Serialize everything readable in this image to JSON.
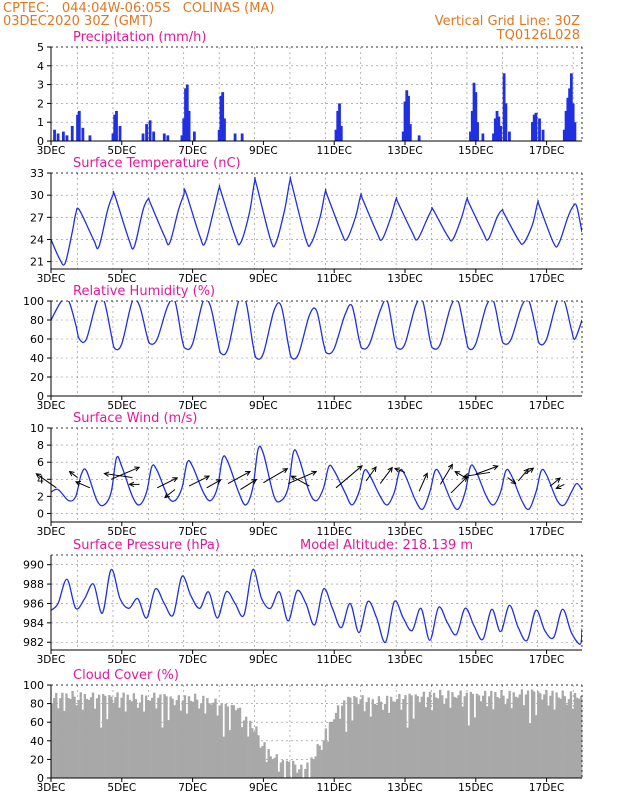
{
  "header": {
    "line1_left": "CPTEC:   044:04W-06:05S   COLINAS (MA)",
    "line2_left": "03DEC2020 30Z (GMT)",
    "line1_right": "Vertical Grid Line: 30Z",
    "line2_right": "TQ0126L028"
  },
  "colors": {
    "header": "#e07820",
    "title": "#e0189c",
    "series": "#2030e0",
    "cloud": "#a8a8a8",
    "axis": "#000000",
    "grid": "#888888"
  },
  "x_axis": {
    "days": 15,
    "tick_labels": [
      "3DEC",
      "5DEC",
      "7DEC",
      "9DEC",
      "11DEC",
      "13DEC",
      "15DEC",
      "17DEC"
    ],
    "tick_days": [
      0,
      2,
      4,
      6,
      8,
      10,
      12,
      14
    ]
  },
  "chart_data": [
    {
      "id": "precip",
      "type": "bar",
      "title": "Precipitation (mm/h)",
      "ylim": [
        0,
        5
      ],
      "yticks": [
        "0",
        "1",
        "2",
        "3",
        "4",
        "5"
      ],
      "yticks_values": [
        0,
        1,
        2,
        3,
        4,
        5
      ],
      "events": [
        [
          0.1,
          0.6
        ],
        [
          0.2,
          0.4
        ],
        [
          0.35,
          0.5
        ],
        [
          0.45,
          0.3
        ],
        [
          0.6,
          0.8
        ],
        [
          0.75,
          1.4
        ],
        [
          0.8,
          1.6
        ],
        [
          0.9,
          0.7
        ],
        [
          1.1,
          0.3
        ],
        [
          1.75,
          0.4
        ],
        [
          1.8,
          1.4
        ],
        [
          1.85,
          1.6
        ],
        [
          1.95,
          0.8
        ],
        [
          2.6,
          0.4
        ],
        [
          2.7,
          0.9
        ],
        [
          2.8,
          1.1
        ],
        [
          2.9,
          0.5
        ],
        [
          3.2,
          0.4
        ],
        [
          3.3,
          0.3
        ],
        [
          3.7,
          0.3
        ],
        [
          3.75,
          1.2
        ],
        [
          3.8,
          2.8
        ],
        [
          3.85,
          3.0
        ],
        [
          3.9,
          1.6
        ],
        [
          4.05,
          0.5
        ],
        [
          4.75,
          0.6
        ],
        [
          4.8,
          2.4
        ],
        [
          4.85,
          2.6
        ],
        [
          4.9,
          1.2
        ],
        [
          5.2,
          0.4
        ],
        [
          5.4,
          0.4
        ],
        [
          8.05,
          0.6
        ],
        [
          8.1,
          1.6
        ],
        [
          8.15,
          2.0
        ],
        [
          8.2,
          0.8
        ],
        [
          9.95,
          0.5
        ],
        [
          10.0,
          2.1
        ],
        [
          10.05,
          2.7
        ],
        [
          10.1,
          2.4
        ],
        [
          10.15,
          0.9
        ],
        [
          10.4,
          0.3
        ],
        [
          11.85,
          0.5
        ],
        [
          11.9,
          1.6
        ],
        [
          11.95,
          3.1
        ],
        [
          12.0,
          2.6
        ],
        [
          12.05,
          1.0
        ],
        [
          12.2,
          0.4
        ],
        [
          12.5,
          0.4
        ],
        [
          12.55,
          1.2
        ],
        [
          12.6,
          1.6
        ],
        [
          12.65,
          1.3
        ],
        [
          12.7,
          0.8
        ],
        [
          12.8,
          3.6
        ],
        [
          12.85,
          2.0
        ],
        [
          12.95,
          0.5
        ],
        [
          13.6,
          1.0
        ],
        [
          13.65,
          1.4
        ],
        [
          13.7,
          1.5
        ],
        [
          13.8,
          1.2
        ],
        [
          13.9,
          0.6
        ],
        [
          14.5,
          0.6
        ],
        [
          14.55,
          1.6
        ],
        [
          14.6,
          2.3
        ],
        [
          14.65,
          2.8
        ],
        [
          14.7,
          3.6
        ],
        [
          14.75,
          2.0
        ],
        [
          14.8,
          1.0
        ]
      ]
    },
    {
      "id": "temp",
      "type": "line",
      "title": "Surface Temperature (nC)",
      "ylim": [
        20,
        33
      ],
      "yticks": [
        "21",
        "24",
        "27",
        "30",
        "33"
      ],
      "yticks_values": [
        21,
        24,
        27,
        30,
        33
      ],
      "x": [
        0,
        0.25,
        0.4,
        0.6,
        0.7,
        0.8,
        1.2,
        1.35,
        1.6,
        1.75,
        1.8,
        2.2,
        2.35,
        2.6,
        2.75,
        2.8,
        3.2,
        3.35,
        3.6,
        3.75,
        3.8,
        4.2,
        4.35,
        4.6,
        4.75,
        4.8,
        5.2,
        5.35,
        5.6,
        5.75,
        5.8,
        6.2,
        6.35,
        6.6,
        6.75,
        6.8,
        7.2,
        7.35,
        7.6,
        7.75,
        7.8,
        8.2,
        8.35,
        8.6,
        8.75,
        8.8,
        9.2,
        9.35,
        9.6,
        9.75,
        9.8,
        10.2,
        10.35,
        10.6,
        10.75,
        10.8,
        11.2,
        11.35,
        11.6,
        11.75,
        11.8,
        12.2,
        12.35,
        12.6,
        12.75,
        12.8,
        13.2,
        13.35,
        13.6,
        13.75,
        13.8,
        14.2,
        14.35,
        14.6,
        14.75,
        14.85,
        15
      ],
      "y": [
        24,
        21.3,
        20.8,
        25,
        27.5,
        28,
        24,
        23,
        28,
        30,
        30,
        24,
        23,
        28,
        29.5,
        29,
        24.5,
        23.5,
        28,
        30,
        30.5,
        24.5,
        23.5,
        28,
        31,
        30.5,
        24.5,
        23.5,
        27.5,
        31.8,
        31.5,
        24,
        23.5,
        28,
        32,
        31.5,
        24,
        23.5,
        27,
        30.5,
        30,
        25,
        24,
        27,
        30,
        29.5,
        25,
        24,
        27,
        29.5,
        29,
        25,
        24,
        26.5,
        28,
        28,
        24.5,
        24,
        27,
        29.5,
        29,
        25,
        24,
        27,
        28,
        27.5,
        24,
        23.5,
        26,
        29,
        28.5,
        23.5,
        23.5,
        27,
        28.5,
        28.5,
        25
      ]
    },
    {
      "id": "rh",
      "type": "line",
      "title": "Relative Humidity (%)",
      "ylim": [
        0,
        100
      ],
      "yticks": [
        "0",
        "20",
        "40",
        "60",
        "80",
        "100"
      ],
      "yticks_values": [
        0,
        20,
        40,
        60,
        80,
        100
      ],
      "x": [
        0,
        0.3,
        0.5,
        0.7,
        0.8,
        1.0,
        1.3,
        1.5,
        1.7,
        1.8,
        2.0,
        2.3,
        2.5,
        2.7,
        2.8,
        3.0,
        3.3,
        3.5,
        3.7,
        3.8,
        4.0,
        4.3,
        4.5,
        4.7,
        4.8,
        5.0,
        5.3,
        5.5,
        5.7,
        5.8,
        6.0,
        6.3,
        6.5,
        6.7,
        6.8,
        7.0,
        7.3,
        7.5,
        7.7,
        7.8,
        8.0,
        8.3,
        8.5,
        8.7,
        8.8,
        9.0,
        9.3,
        9.5,
        9.7,
        9.8,
        10.0,
        10.3,
        10.5,
        10.7,
        10.8,
        11.0,
        11.3,
        11.5,
        11.7,
        11.8,
        12.0,
        12.3,
        12.5,
        12.7,
        12.8,
        13.0,
        13.3,
        13.5,
        13.7,
        13.8,
        14.0,
        14.3,
        14.5,
        14.7,
        14.8,
        15
      ],
      "y": [
        80,
        100,
        100,
        75,
        60,
        60,
        100,
        100,
        65,
        50,
        55,
        100,
        95,
        65,
        55,
        60,
        95,
        100,
        60,
        50,
        55,
        100,
        95,
        60,
        45,
        50,
        100,
        100,
        55,
        40,
        45,
        90,
        95,
        55,
        40,
        45,
        85,
        90,
        55,
        45,
        50,
        85,
        95,
        60,
        50,
        55,
        90,
        100,
        60,
        50,
        55,
        95,
        100,
        60,
        50,
        55,
        95,
        100,
        65,
        50,
        55,
        95,
        100,
        65,
        55,
        60,
        95,
        100,
        70,
        55,
        60,
        100,
        100,
        70,
        60,
        80
      ]
    },
    {
      "id": "wind",
      "type": "line",
      "title": "Surface Wind (m/s)",
      "ylim": [
        -1,
        10
      ],
      "yticks": [
        "0",
        "2",
        "4",
        "6",
        "8",
        "10"
      ],
      "yticks_values": [
        0,
        2,
        4,
        6,
        8,
        10
      ],
      "x": [
        0,
        0.2,
        0.5,
        0.7,
        0.85,
        1.0,
        1.3,
        1.5,
        1.7,
        1.85,
        2.0,
        2.3,
        2.5,
        2.7,
        2.85,
        3.0,
        3.3,
        3.5,
        3.7,
        3.85,
        4.0,
        4.3,
        4.5,
        4.7,
        4.85,
        5.0,
        5.3,
        5.5,
        5.7,
        5.85,
        6.0,
        6.3,
        6.5,
        6.7,
        6.85,
        7.0,
        7.3,
        7.5,
        7.7,
        7.85,
        8.0,
        8.3,
        8.5,
        8.7,
        8.85,
        9.0,
        9.3,
        9.5,
        9.7,
        9.85,
        10.0,
        10.3,
        10.5,
        10.7,
        10.85,
        11.0,
        11.3,
        11.5,
        11.7,
        11.85,
        12.0,
        12.3,
        12.5,
        12.7,
        12.85,
        13.0,
        13.3,
        13.5,
        13.7,
        13.85,
        14.0,
        14.3,
        14.5,
        14.7,
        14.85,
        15
      ],
      "y": [
        2.5,
        2.8,
        1.5,
        2.0,
        4.5,
        5.0,
        1.5,
        1.0,
        2.5,
        6.5,
        5.5,
        2.0,
        1.0,
        2.5,
        5.5,
        5.0,
        2.0,
        1.5,
        3.0,
        6.0,
        5.5,
        2.5,
        1.5,
        3.0,
        6.5,
        6.0,
        2.5,
        1.0,
        3.0,
        7.5,
        7.0,
        2.0,
        1.5,
        3.0,
        7.2,
        6.5,
        2.5,
        1.5,
        3.0,
        5.5,
        5.0,
        2.5,
        1.0,
        2.5,
        5.0,
        4.5,
        2.0,
        1.0,
        2.5,
        5.0,
        4.5,
        1.5,
        0.5,
        2.5,
        5.0,
        4.5,
        1.5,
        0.5,
        2.5,
        5.5,
        5.0,
        2.0,
        1.0,
        2.5,
        5.0,
        4.5,
        1.5,
        0.5,
        2.5,
        5.0,
        4.5,
        1.5,
        1.0,
        2.5,
        3.5,
        2.8
      ],
      "vectors": [
        [
          0.15,
          3.0,
          -20,
          -14
        ],
        [
          0.75,
          4.2,
          -8,
          -6
        ],
        [
          1.1,
          3.0,
          -14,
          -6
        ],
        [
          1.7,
          4.0,
          28,
          -12
        ],
        [
          2.3,
          4.2,
          -28,
          -4
        ],
        [
          2.5,
          3.4,
          -10,
          0
        ],
        [
          3.0,
          3.0,
          20,
          -10
        ],
        [
          3.5,
          2.8,
          -10,
          8
        ],
        [
          3.9,
          3.2,
          20,
          -10
        ],
        [
          4.4,
          3.0,
          14,
          -8
        ],
        [
          5.0,
          3.5,
          22,
          -12
        ],
        [
          5.35,
          2.8,
          16,
          -10
        ],
        [
          6.0,
          3.6,
          24,
          -14
        ],
        [
          6.7,
          3.5,
          28,
          -12
        ],
        [
          7.3,
          3.2,
          -18,
          -10
        ],
        [
          8.05,
          3.0,
          26,
          -22
        ],
        [
          8.9,
          3.8,
          10,
          -14
        ],
        [
          9.3,
          3.5,
          12,
          -16
        ],
        [
          10.0,
          4.8,
          -10,
          -4
        ],
        [
          10.4,
          2.6,
          8,
          -18
        ],
        [
          11.0,
          3.4,
          12,
          -20
        ],
        [
          11.3,
          2.4,
          16,
          -16
        ],
        [
          11.7,
          4.2,
          -10,
          -6
        ],
        [
          12.0,
          4.6,
          22,
          -8
        ],
        [
          12.4,
          4.8,
          -26,
          4
        ],
        [
          12.9,
          4.2,
          8,
          6
        ],
        [
          13.2,
          3.8,
          10,
          -12
        ],
        [
          13.4,
          4.6,
          8,
          -6
        ],
        [
          14.1,
          3.2,
          10,
          -8
        ],
        [
          14.5,
          3.4,
          -8,
          4
        ]
      ]
    },
    {
      "id": "press",
      "type": "line",
      "title": "Surface Pressure (hPa)",
      "title_right": "Model Altitude: 218.139 m",
      "ylim": [
        981.2,
        991
      ],
      "yticks": [
        "982",
        "984",
        "986",
        "988",
        "990"
      ],
      "yticks_values": [
        982,
        984,
        986,
        988,
        990
      ],
      "x": [
        0,
        0.2,
        0.45,
        0.7,
        0.95,
        1.2,
        1.45,
        1.7,
        1.95,
        2.2,
        2.45,
        2.7,
        2.95,
        3.2,
        3.45,
        3.7,
        3.95,
        4.2,
        4.45,
        4.7,
        4.95,
        5.2,
        5.45,
        5.7,
        5.95,
        6.2,
        6.45,
        6.7,
        6.95,
        7.2,
        7.45,
        7.7,
        7.95,
        8.2,
        8.45,
        8.7,
        8.95,
        9.2,
        9.45,
        9.7,
        9.95,
        10.2,
        10.45,
        10.7,
        10.95,
        11.2,
        11.45,
        11.7,
        11.95,
        12.2,
        12.45,
        12.7,
        12.95,
        13.2,
        13.45,
        13.7,
        13.95,
        14.2,
        14.45,
        14.7,
        14.95,
        15
      ],
      "y": [
        985.3,
        986,
        988.5,
        985.5,
        986.5,
        988,
        985,
        989.5,
        986.5,
        985.5,
        986.5,
        984.5,
        987.5,
        986,
        984.8,
        988.8,
        986.8,
        985.5,
        987.2,
        984.5,
        987.2,
        986,
        984.8,
        989.5,
        986.5,
        985.5,
        987.2,
        984.2,
        987.3,
        986,
        983.8,
        987.5,
        985.5,
        983.5,
        986,
        983,
        986.2,
        984.5,
        982,
        986.2,
        984.5,
        983.2,
        985.5,
        982.2,
        985.6,
        984,
        982.8,
        985.5,
        983.7,
        982.3,
        985.4,
        983.1,
        985.8,
        983.5,
        982.2,
        985.3,
        983.2,
        982.5,
        985.4,
        983,
        981.8,
        983.4
      ]
    },
    {
      "id": "cloud",
      "type": "area",
      "title": "Cloud Cover (%)",
      "ylim": [
        0,
        100
      ],
      "yticks": [
        "0",
        "20",
        "40",
        "60",
        "80",
        "100"
      ],
      "yticks_values": [
        0,
        20,
        40,
        60,
        80,
        100
      ],
      "x": [
        0,
        0.5,
        1.0,
        1.5,
        2.0,
        2.5,
        3.0,
        3.5,
        4.0,
        4.5,
        5.0,
        5.2,
        5.4,
        5.6,
        5.8,
        6.0,
        6.2,
        6.4,
        6.6,
        6.8,
        7.0,
        7.2,
        7.4,
        7.6,
        7.8,
        8.0,
        8.2,
        8.4,
        8.6,
        8.8,
        9.0,
        9.5,
        10.0,
        10.5,
        11.0,
        11.5,
        12.0,
        12.5,
        13.0,
        13.5,
        14.0,
        14.5,
        15
      ],
      "y": [
        92,
        95,
        93,
        92,
        94,
        91,
        93,
        90,
        92,
        88,
        80,
        85,
        70,
        65,
        55,
        40,
        30,
        25,
        20,
        22,
        15,
        18,
        30,
        45,
        60,
        75,
        85,
        90,
        92,
        90,
        88,
        90,
        92,
        94,
        96,
        95,
        94,
        96,
        95,
        97,
        96,
        95,
        94
      ],
      "noise": [
        12,
        25,
        5,
        18,
        30,
        8,
        22,
        14,
        35,
        10,
        4,
        28,
        16,
        40,
        6,
        20,
        12,
        32,
        9,
        24,
        3,
        18,
        27,
        11,
        38,
        7,
        15,
        29,
        13,
        21
      ]
    }
  ]
}
